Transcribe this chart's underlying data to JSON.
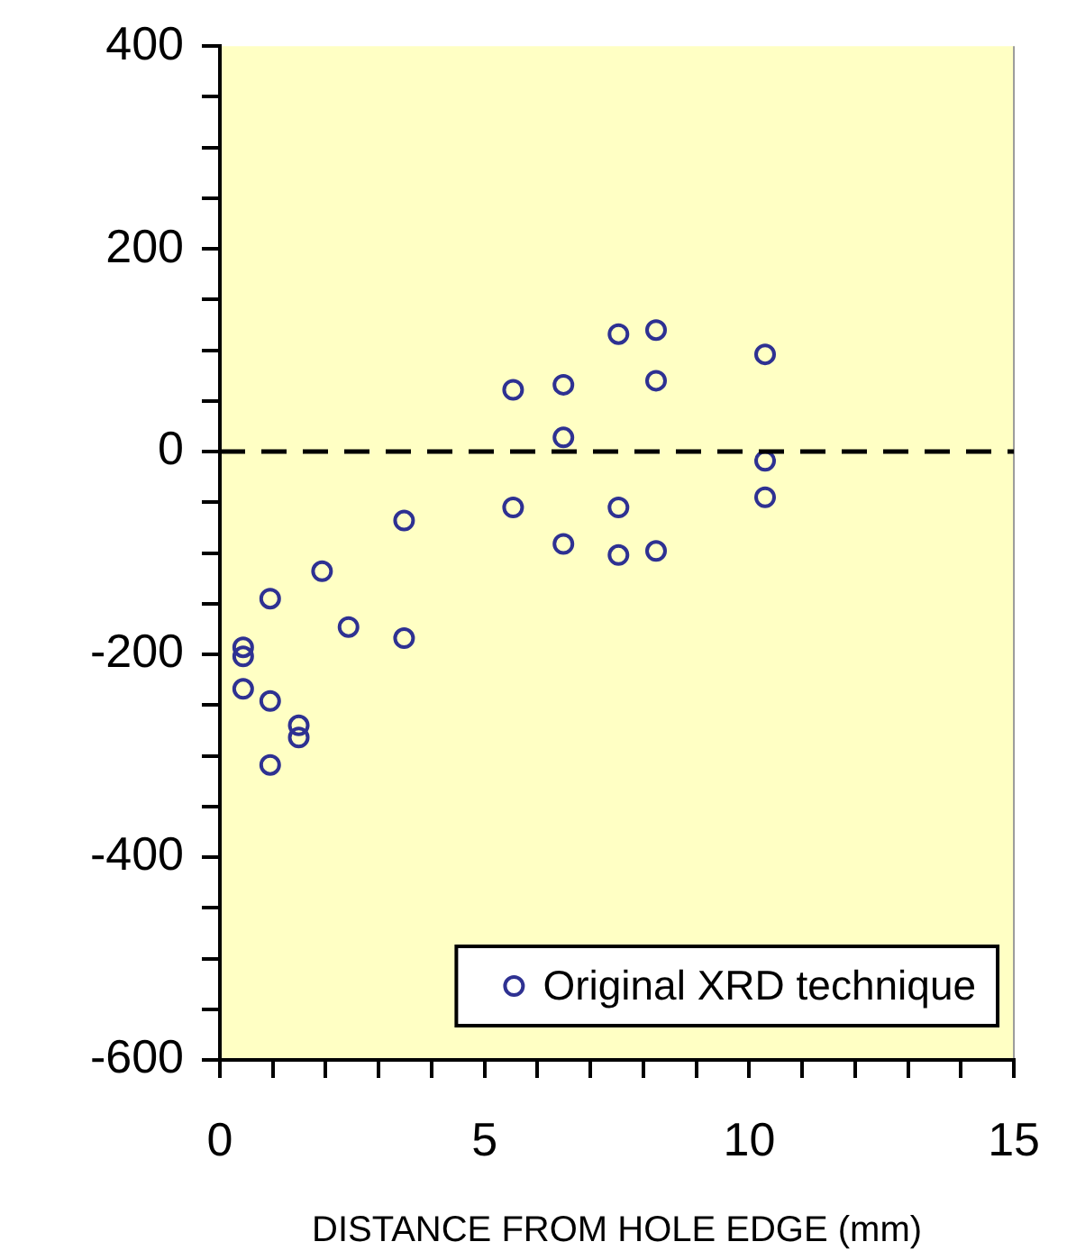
{
  "chart_data": {
    "type": "scatter",
    "xlabel": "DISTANCE FROM HOLE EDGE (mm)",
    "series": [
      {
        "name": "Original XRD technique",
        "color": "#2e3192",
        "x": [
          0.44,
          0.44,
          0.44,
          0.95,
          0.95,
          0.95,
          1.49,
          1.49,
          1.93,
          2.43,
          3.48,
          3.48,
          5.54,
          5.54,
          6.49,
          6.49,
          6.49,
          7.53,
          7.53,
          7.53,
          8.24,
          8.24,
          8.24,
          10.3,
          10.3,
          10.3
        ],
        "values": [
          -193,
          -202,
          -234,
          -145,
          -246,
          -309,
          -270,
          -282,
          -118,
          -173,
          -68,
          -184,
          61,
          -55,
          66,
          14,
          -91,
          116,
          -55,
          -102,
          120,
          70,
          -98,
          96,
          -9,
          -45
        ]
      }
    ],
    "xlim": [
      0,
      15
    ],
    "xticks": [
      0,
      {
        "value": 1,
        "label": null
      },
      {
        "value": 2,
        "label": null
      },
      {
        "value": 3,
        "label": null
      },
      {
        "value": 4,
        "label": null
      },
      5,
      {
        "value": 6,
        "label": null
      },
      {
        "value": 7,
        "label": null
      },
      {
        "value": 8,
        "label": null
      },
      {
        "value": 9,
        "label": null
      },
      10,
      {
        "value": 11,
        "label": null
      },
      {
        "value": 12,
        "label": null
      },
      {
        "value": 13,
        "label": null
      },
      {
        "value": 14,
        "label": null
      },
      15
    ],
    "ylim": [
      -600,
      400
    ],
    "yticks": [
      -600,
      {
        "value": -550,
        "label": null
      },
      {
        "value": -500,
        "label": null
      },
      {
        "value": -450,
        "label": null
      },
      -400,
      {
        "value": -350,
        "label": null
      },
      {
        "value": -300,
        "label": null
      },
      {
        "value": -250,
        "label": null
      },
      -200,
      {
        "value": -150,
        "label": null
      },
      {
        "value": -100,
        "label": null
      },
      {
        "value": -50,
        "label": null
      },
      0,
      {
        "value": 50,
        "label": null
      },
      {
        "value": 100,
        "label": null
      },
      {
        "value": 150,
        "label": null
      },
      200,
      {
        "value": 250,
        "label": null
      },
      {
        "value": 300,
        "label": null
      },
      {
        "value": 350,
        "label": null
      },
      400
    ],
    "ref_lines": [
      {
        "axis": "y",
        "value": 0,
        "color": "#000000",
        "line_style": "dashed"
      }
    ],
    "grid": false,
    "legend": "bottom right",
    "marker": "circle"
  }
}
